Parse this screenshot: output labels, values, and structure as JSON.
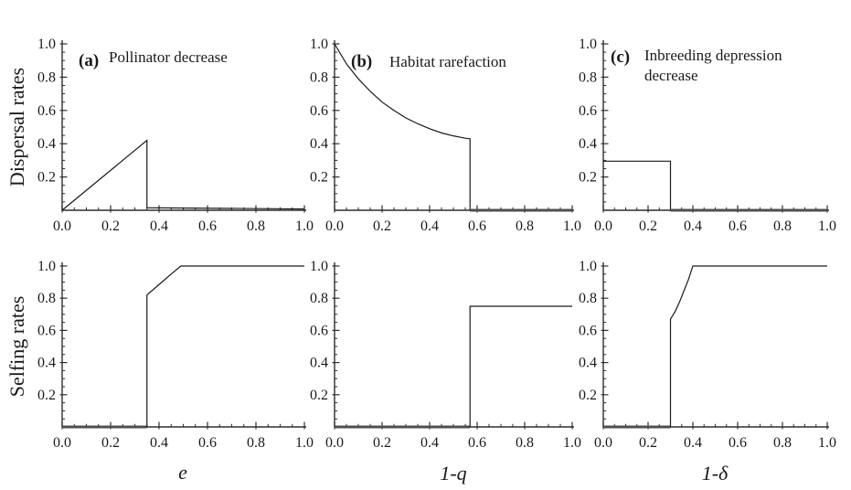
{
  "figure": {
    "row_labels": [
      "Dispersal rates",
      "Selfing rates"
    ],
    "x_axis_math_labels": [
      "e",
      "1-q",
      "1-δ"
    ],
    "colors": {
      "background": "#ffffff",
      "curve": "#1a1a1a",
      "axis": "#2f2f2f",
      "zero_overlap_segment": "#4f4f4f",
      "text": "#1a1a1a"
    }
  },
  "chart_data": [
    {
      "panel": "a-dispersal",
      "row": 0,
      "col": 0,
      "type": "line",
      "tag": "(a)",
      "title": "Pollinator decrease",
      "title_line2": "",
      "ylabel": "Dispersal rates",
      "xlabel": "e",
      "xlim": [
        0,
        1
      ],
      "ylim": [
        0,
        1
      ],
      "x_ticks": [
        0.0,
        0.2,
        0.4,
        0.6,
        0.8,
        1.0
      ],
      "y_ticks": [
        0.2,
        0.4,
        0.6,
        0.8,
        1.0
      ],
      "minor_tick_step": 0.05,
      "grid": false,
      "series": [
        {
          "name": "dispersal-ess",
          "points": [
            [
              0,
              0
            ],
            [
              0.35,
              0.42
            ],
            [
              0.35,
              0.015
            ],
            [
              1.0,
              0.008
            ]
          ],
          "on_axis": false
        }
      ]
    },
    {
      "panel": "b-dispersal",
      "row": 0,
      "col": 1,
      "type": "line",
      "tag": "(b)",
      "title": "Habitat rarefaction",
      "title_line2": "",
      "ylabel": "",
      "xlabel": "1-q",
      "xlim": [
        0,
        1
      ],
      "ylim": [
        0,
        1
      ],
      "x_ticks": [
        0.0,
        0.2,
        0.4,
        0.6,
        0.8,
        1.0
      ],
      "y_ticks": [
        0.2,
        0.4,
        0.6,
        0.8,
        1.0
      ],
      "minor_tick_step": 0.05,
      "grid": false,
      "series": [
        {
          "name": "dispersal-ess",
          "points": [
            [
              0,
              1.0
            ],
            [
              0.05,
              0.88
            ],
            [
              0.1,
              0.79
            ],
            [
              0.15,
              0.715
            ],
            [
              0.2,
              0.65
            ],
            [
              0.25,
              0.6
            ],
            [
              0.3,
              0.555
            ],
            [
              0.35,
              0.52
            ],
            [
              0.4,
              0.49
            ],
            [
              0.45,
              0.465
            ],
            [
              0.5,
              0.447
            ],
            [
              0.55,
              0.433
            ],
            [
              0.57,
              0.43
            ],
            [
              0.57,
              0
            ]
          ],
          "on_axis": false
        },
        {
          "name": "zero-branch",
          "points": [
            [
              0.57,
              0
            ],
            [
              1.0,
              0
            ]
          ],
          "on_axis": true
        }
      ]
    },
    {
      "panel": "c-dispersal",
      "row": 0,
      "col": 2,
      "type": "line",
      "tag": "(c)",
      "title": "Inbreeding depression",
      "title_line2": "decrease",
      "ylabel": "",
      "xlabel": "1-δ",
      "xlim": [
        0,
        1
      ],
      "ylim": [
        0,
        1
      ],
      "x_ticks": [
        0.0,
        0.2,
        0.4,
        0.6,
        0.8,
        1.0
      ],
      "y_ticks": [
        0.2,
        0.4,
        0.6,
        0.8,
        1.0
      ],
      "minor_tick_step": 0.05,
      "grid": false,
      "series": [
        {
          "name": "dispersal-ess",
          "points": [
            [
              0,
              0.295
            ],
            [
              0.3,
              0.295
            ],
            [
              0.3,
              0
            ]
          ],
          "on_axis": false
        },
        {
          "name": "zero-branch",
          "points": [
            [
              0.3,
              0
            ],
            [
              1.0,
              0
            ]
          ],
          "on_axis": true
        }
      ]
    },
    {
      "panel": "a-selfing",
      "row": 1,
      "col": 0,
      "type": "line",
      "tag": "",
      "title": "",
      "title_line2": "",
      "ylabel": "Selfing rates",
      "xlabel": "e",
      "xlim": [
        0,
        1
      ],
      "ylim": [
        0,
        1
      ],
      "x_ticks": [
        0.0,
        0.2,
        0.4,
        0.6,
        0.8,
        1.0
      ],
      "y_ticks": [
        0.2,
        0.4,
        0.6,
        0.8,
        1.0
      ],
      "minor_tick_step": 0.05,
      "grid": false,
      "series": [
        {
          "name": "zero-branch",
          "points": [
            [
              0,
              0
            ],
            [
              0.35,
              0
            ]
          ],
          "on_axis": true
        },
        {
          "name": "selfing-ess",
          "points": [
            [
              0.35,
              0
            ],
            [
              0.35,
              0.82
            ],
            [
              0.4,
              0.885
            ],
            [
              0.45,
              0.95
            ],
            [
              0.49,
              1.0
            ],
            [
              1.0,
              1.0
            ]
          ],
          "on_axis": false
        }
      ]
    },
    {
      "panel": "b-selfing",
      "row": 1,
      "col": 1,
      "type": "line",
      "tag": "",
      "title": "",
      "title_line2": "",
      "ylabel": "",
      "xlabel": "1-q",
      "xlim": [
        0,
        1
      ],
      "ylim": [
        0,
        1
      ],
      "x_ticks": [
        0.0,
        0.2,
        0.4,
        0.6,
        0.8,
        1.0
      ],
      "y_ticks": [
        0.2,
        0.4,
        0.6,
        0.8,
        1.0
      ],
      "minor_tick_step": 0.05,
      "grid": false,
      "series": [
        {
          "name": "zero-branch",
          "points": [
            [
              0,
              0
            ],
            [
              0.57,
              0
            ]
          ],
          "on_axis": true
        },
        {
          "name": "selfing-ess",
          "points": [
            [
              0.57,
              0
            ],
            [
              0.57,
              0.75
            ],
            [
              1.0,
              0.75
            ]
          ],
          "on_axis": false
        }
      ]
    },
    {
      "panel": "c-selfing",
      "row": 1,
      "col": 2,
      "type": "line",
      "tag": "",
      "title": "",
      "title_line2": "",
      "ylabel": "",
      "xlabel": "1-δ",
      "xlim": [
        0,
        1
      ],
      "ylim": [
        0,
        1
      ],
      "x_ticks": [
        0.0,
        0.2,
        0.4,
        0.6,
        0.8,
        1.0
      ],
      "y_ticks": [
        0.2,
        0.4,
        0.6,
        0.8,
        1.0
      ],
      "minor_tick_step": 0.05,
      "grid": false,
      "series": [
        {
          "name": "zero-branch",
          "points": [
            [
              0,
              0
            ],
            [
              0.3,
              0
            ]
          ],
          "on_axis": true
        },
        {
          "name": "selfing-ess",
          "points": [
            [
              0.3,
              0
            ],
            [
              0.3,
              0.67
            ],
            [
              0.32,
              0.715
            ],
            [
              0.34,
              0.775
            ],
            [
              0.36,
              0.845
            ],
            [
              0.38,
              0.915
            ],
            [
              0.4,
              1.0
            ],
            [
              1.0,
              1.0
            ]
          ],
          "on_axis": false
        }
      ]
    }
  ]
}
